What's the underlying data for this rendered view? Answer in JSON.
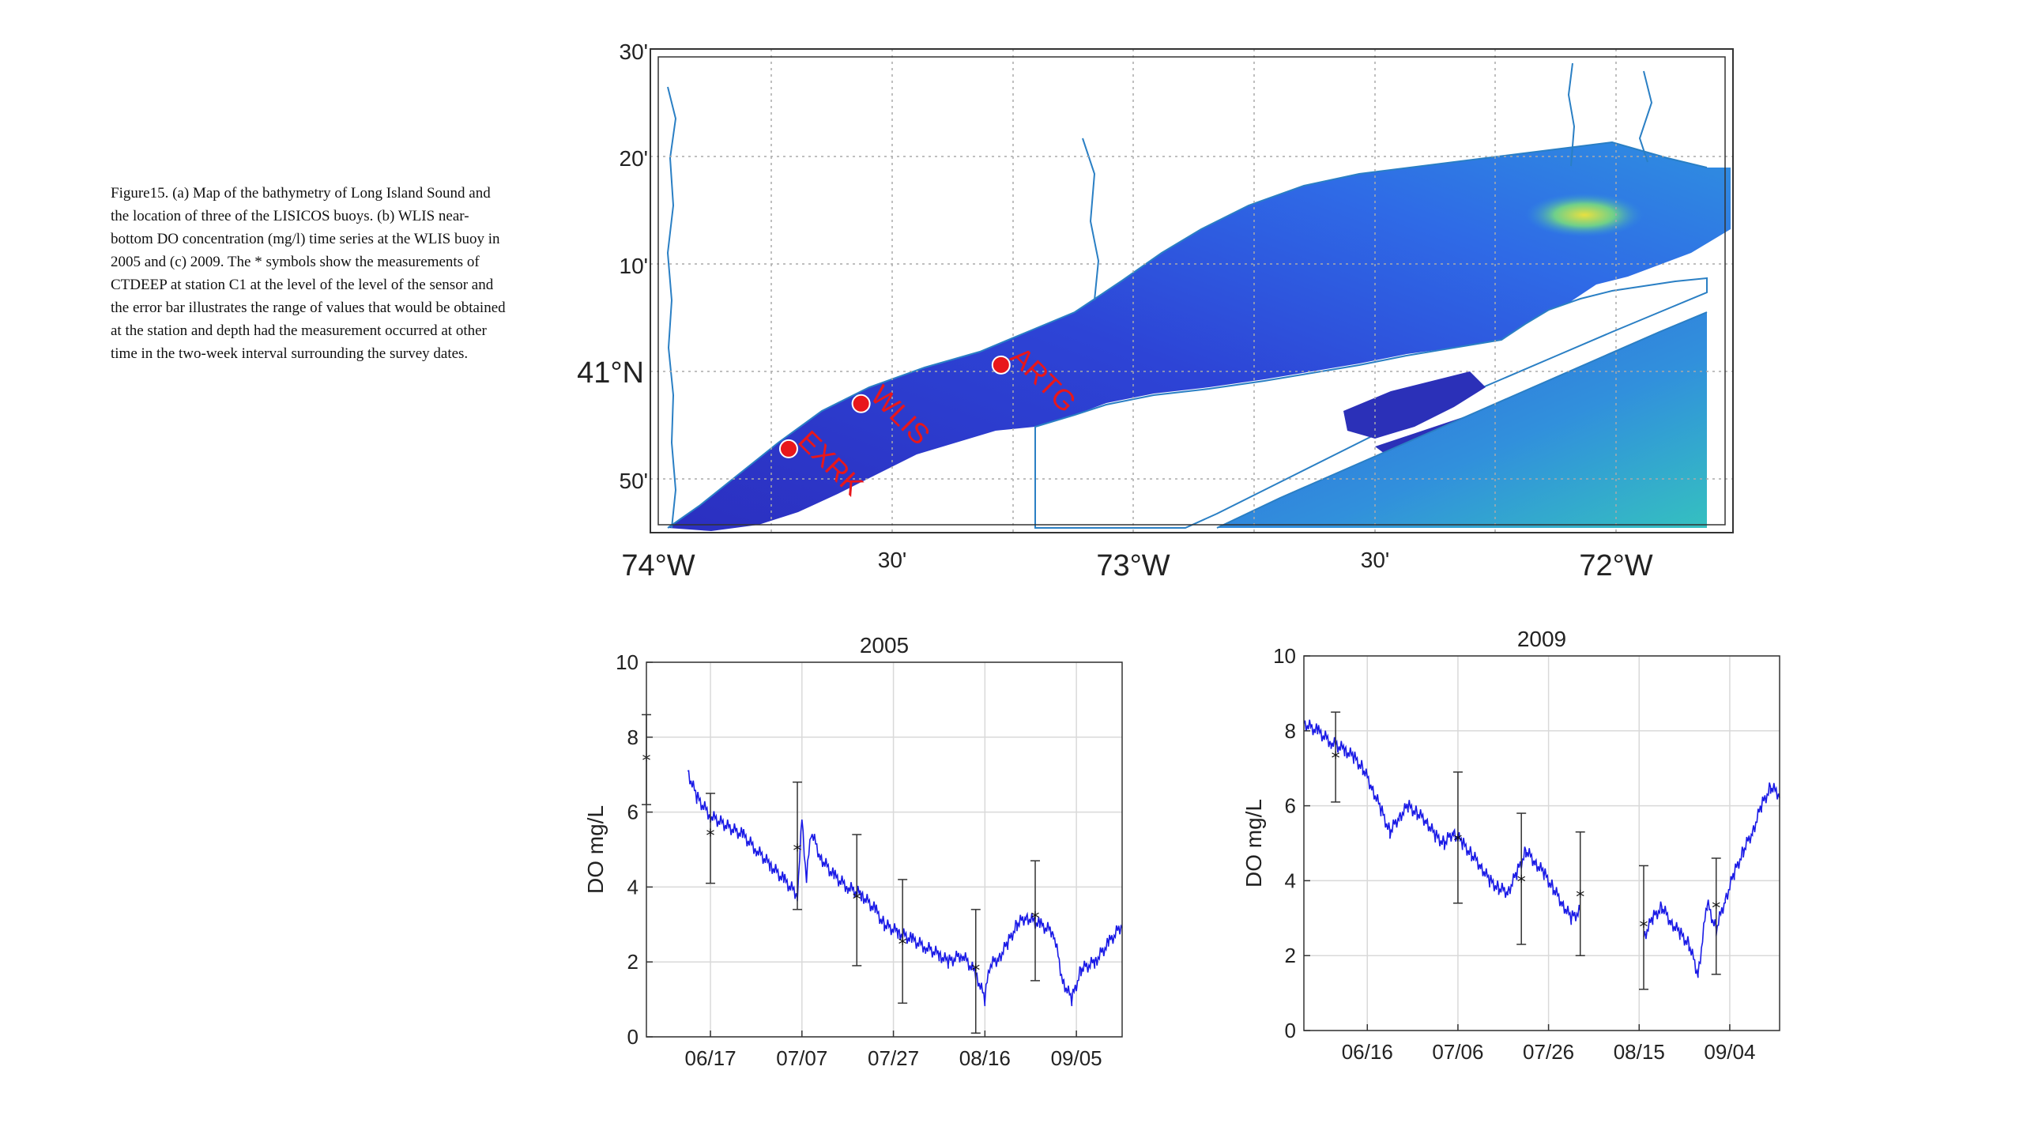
{
  "caption": "Figure15. (a) Map of the bathymetry of Long Island Sound and the location of three of the LISICOS buoys. (b) WLIS near-bottom DO concentration (mg/l) time series at the WLIS buoy in 2005 and (c) 2009. The * symbols show the measurements of CTDEEP at station C1 at the level of the level of the sensor and the error bar illustrates the range of values that would be obtained at the station and depth had the measurement occurred at other time in the two-week interval surrounding the survey dates.",
  "map": {
    "lat_labels": [
      "30'",
      "20'",
      "10'",
      "41°N",
      "50'"
    ],
    "lon_labels": [
      "74°W",
      "30'",
      "73°W",
      "30'",
      "72°W"
    ],
    "stations": [
      {
        "name": "EXRK",
        "lon": -73.73,
        "lat": 40.88
      },
      {
        "name": "WLIS",
        "lon": -73.58,
        "lat": 40.95
      },
      {
        "name": "ARTG",
        "lon": -73.29,
        "lat": 41.01
      }
    ],
    "colors": {
      "deep": "#2a35c9",
      "shallow": "#2f8fe0",
      "hot": "#e8e040",
      "station": "#e8171b"
    }
  },
  "chart_data": [
    {
      "type": "line",
      "title": "2005",
      "ylabel": "DO mg/L",
      "xlabel": "",
      "ylim": [
        0,
        10
      ],
      "yticks": [
        0,
        2,
        4,
        6,
        8,
        10
      ],
      "xlim": [
        154,
        258
      ],
      "xticks": [
        {
          "day": 168,
          "label": "06/17"
        },
        {
          "day": 188,
          "label": "07/07"
        },
        {
          "day": 208,
          "label": "07/27"
        },
        {
          "day": 228,
          "label": "08/16"
        },
        {
          "day": 248,
          "label": "09/05"
        }
      ],
      "grid": true,
      "series": [
        {
          "kind": "line",
          "color": "#1a1ae6",
          "points": [
            [
              163,
              7.1
            ],
            [
              165,
              6.4
            ],
            [
              168,
              5.9
            ],
            [
              172,
              5.6
            ],
            [
              175,
              5.4
            ],
            [
              178,
              5.0
            ],
            [
              181,
              4.6
            ],
            [
              184,
              4.2
            ],
            [
              187,
              3.8
            ],
            [
              188,
              5.8
            ],
            [
              189,
              4.2
            ],
            [
              190,
              5.5
            ],
            [
              192,
              4.8
            ],
            [
              195,
              4.3
            ],
            [
              198,
              4.0
            ],
            [
              201,
              3.8
            ],
            [
              204,
              3.4
            ],
            [
              206,
              3.0
            ],
            [
              209,
              2.8
            ],
            [
              212,
              2.6
            ],
            [
              215,
              2.4
            ],
            [
              218,
              2.2
            ],
            [
              220,
              2.0
            ],
            [
              223,
              2.2
            ],
            [
              226,
              1.7
            ],
            [
              228,
              1.0
            ],
            [
              229,
              1.9
            ],
            [
              231,
              2.1
            ],
            [
              233,
              2.5
            ],
            [
              235,
              3.0
            ],
            [
              237,
              3.2
            ],
            [
              240,
              3.0
            ],
            [
              243,
              2.8
            ],
            [
              245,
              1.5
            ],
            [
              247,
              1.0
            ],
            [
              249,
              1.8
            ],
            [
              252,
              2.0
            ],
            [
              255,
              2.5
            ],
            [
              258,
              3.0
            ]
          ]
        },
        {
          "kind": "errorbar",
          "color": "#333333",
          "points": [
            [
              154,
              7.4,
              6.2,
              8.6
            ],
            [
              168,
              5.4,
              4.1,
              6.5
            ],
            [
              187,
              5.0,
              3.4,
              6.8
            ],
            [
              200,
              3.7,
              1.9,
              5.4
            ],
            [
              210,
              2.5,
              0.9,
              4.2
            ],
            [
              226,
              1.8,
              0.1,
              3.4
            ],
            [
              239,
              3.2,
              1.5,
              4.7
            ]
          ]
        }
      ]
    },
    {
      "type": "line",
      "title": "2009",
      "ylabel": "DO mg/L",
      "xlabel": "",
      "ylim": [
        0,
        10
      ],
      "yticks": [
        0,
        2,
        4,
        6,
        8,
        10
      ],
      "xlim": [
        153,
        258
      ],
      "xticks": [
        {
          "day": 167,
          "label": "06/16"
        },
        {
          "day": 187,
          "label": "07/06"
        },
        {
          "day": 207,
          "label": "07/26"
        },
        {
          "day": 227,
          "label": "08/15"
        },
        {
          "day": 247,
          "label": "09/04"
        }
      ],
      "grid": true,
      "series": [
        {
          "kind": "line",
          "color": "#1a1ae6",
          "points": [
            [
              153,
              8.2
            ],
            [
              156,
              8.0
            ],
            [
              159,
              7.7
            ],
            [
              162,
              7.5
            ],
            [
              164,
              7.3
            ],
            [
              166,
              7.0
            ],
            [
              168,
              6.5
            ],
            [
              170,
              5.9
            ],
            [
              172,
              5.3
            ],
            [
              174,
              5.7
            ],
            [
              176,
              6.0
            ],
            [
              178,
              5.8
            ],
            [
              180,
              5.6
            ],
            [
              182,
              5.2
            ],
            [
              184,
              5.0
            ],
            [
              186,
              5.3
            ],
            [
              188,
              5.0
            ],
            [
              190,
              4.7
            ],
            [
              192,
              4.4
            ],
            [
              194,
              4.0
            ],
            [
              196,
              3.8
            ],
            [
              198,
              3.7
            ],
            [
              200,
              4.2
            ],
            [
              202,
              4.8
            ],
            [
              204,
              4.5
            ],
            [
              206,
              4.2
            ],
            [
              208,
              3.8
            ],
            [
              210,
              3.4
            ],
            [
              212,
              3.0
            ],
            [
              214,
              3.2
            ],
            [
              228,
              2.5
            ],
            [
              230,
              3.0
            ],
            [
              232,
              3.3
            ],
            [
              234,
              2.9
            ],
            [
              236,
              2.6
            ],
            [
              238,
              2.3
            ],
            [
              240,
              1.5
            ],
            [
              242,
              3.4
            ],
            [
              244,
              2.7
            ],
            [
              246,
              3.5
            ],
            [
              248,
              4.2
            ],
            [
              250,
              4.8
            ],
            [
              252,
              5.3
            ],
            [
              254,
              6.0
            ],
            [
              256,
              6.5
            ],
            [
              258,
              6.3
            ]
          ]
        },
        {
          "kind": "errorbar",
          "color": "#333333",
          "points": [
            [
              160,
              7.3,
              6.1,
              8.5
            ],
            [
              187,
              5.1,
              3.4,
              6.9
            ],
            [
              201,
              4.0,
              2.3,
              5.8
            ],
            [
              214,
              3.6,
              2.0,
              5.3
            ],
            [
              228,
              2.8,
              1.1,
              4.4
            ],
            [
              244,
              3.3,
              1.5,
              4.6
            ]
          ]
        }
      ]
    }
  ]
}
